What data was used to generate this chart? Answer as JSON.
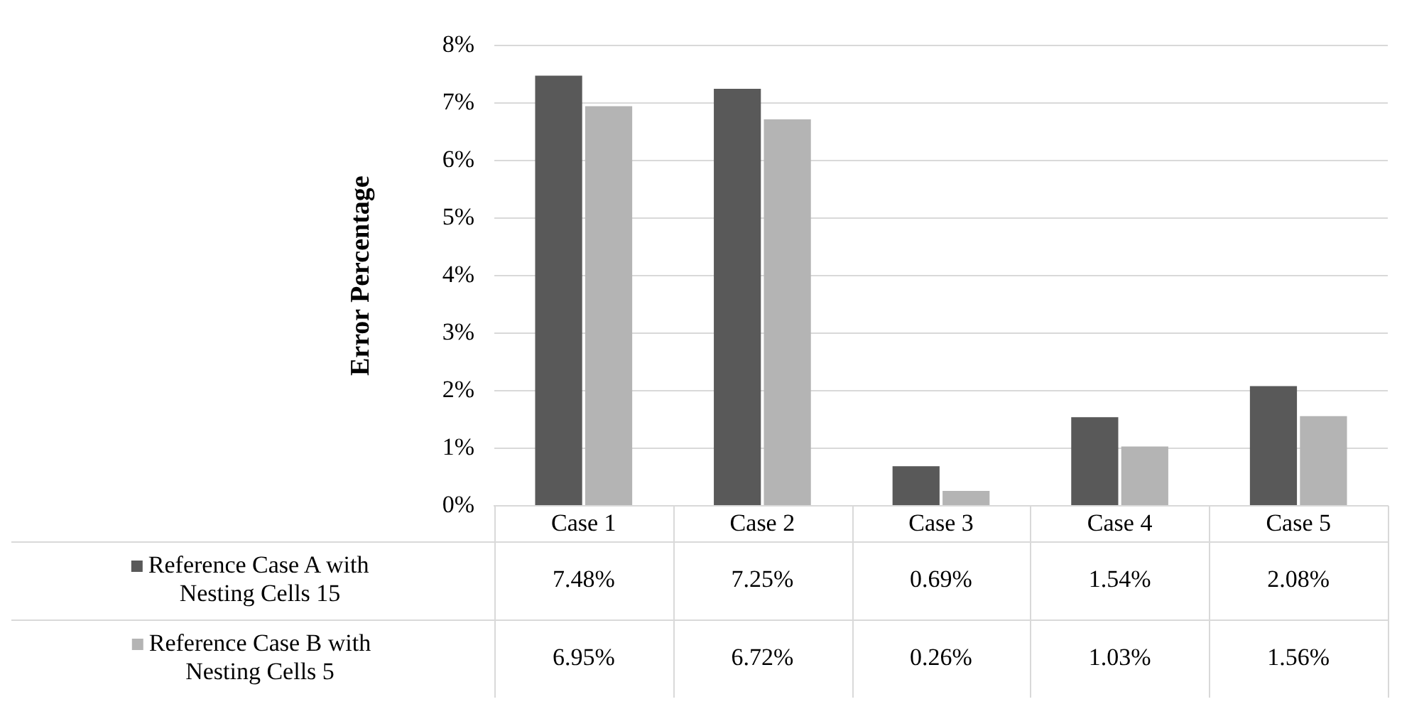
{
  "chart_data": {
    "type": "bar",
    "ylabel": "Error Percentage",
    "categories": [
      "Case 1",
      "Case 2",
      "Case 3",
      "Case 4",
      "Case 5"
    ],
    "series": [
      {
        "name": "Reference Case A with Nesting Cells 15",
        "color": "#595959",
        "values": [
          7.48,
          7.25,
          0.69,
          1.54,
          2.08
        ],
        "value_labels": [
          "7.48%",
          "7.25%",
          "0.69%",
          "1.54%",
          "2.08%"
        ]
      },
      {
        "name": "Reference Case B with Nesting Cells 5",
        "color": "#b4b4b4",
        "values": [
          6.95,
          6.72,
          0.26,
          1.03,
          1.56
        ],
        "value_labels": [
          "6.95%",
          "6.72%",
          "0.26%",
          "1.03%",
          "1.56%"
        ]
      }
    ],
    "ylim": [
      0,
      8
    ],
    "yticks": [
      {
        "value": 0,
        "label": "0%"
      },
      {
        "value": 1,
        "label": "1%"
      },
      {
        "value": 2,
        "label": "2%"
      },
      {
        "value": 3,
        "label": "3%"
      },
      {
        "value": 4,
        "label": "4%"
      },
      {
        "value": 5,
        "label": "5%"
      },
      {
        "value": 6,
        "label": "6%"
      },
      {
        "value": 7,
        "label": "7%"
      },
      {
        "value": 8,
        "label": "8%"
      }
    ],
    "grid": "y",
    "legend": "bottom",
    "data_labels": true
  }
}
